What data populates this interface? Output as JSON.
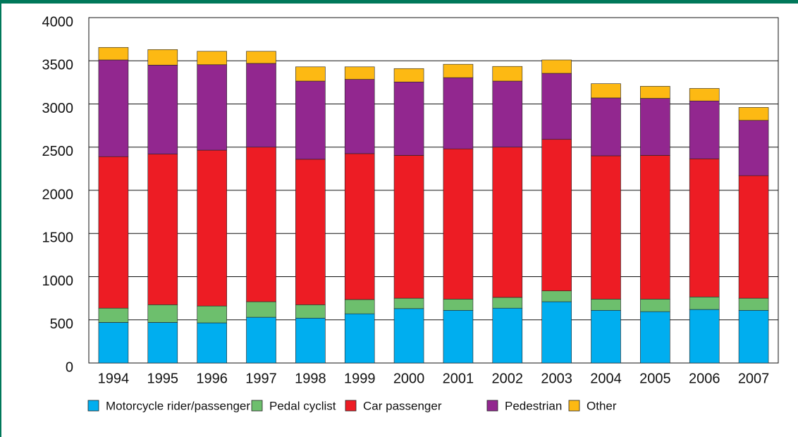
{
  "chart_data": {
    "type": "stacked-bar",
    "categories": [
      "1994",
      "1995",
      "1996",
      "1997",
      "1998",
      "1999",
      "2000",
      "2001",
      "2002",
      "2003",
      "2004",
      "2005",
      "2006",
      "2007"
    ],
    "series": [
      {
        "name": "Motorcycle rider/passenger",
        "color": "#00aeef",
        "values": [
          470,
          470,
          465,
          530,
          520,
          570,
          630,
          610,
          635,
          710,
          610,
          595,
          620,
          610
        ]
      },
      {
        "name": "Pedal cyclist",
        "color": "#6dbf6d",
        "values": [
          165,
          205,
          195,
          180,
          155,
          165,
          120,
          130,
          125,
          125,
          130,
          145,
          145,
          140
        ]
      },
      {
        "name": "Car passenger",
        "color": "#ed1c24",
        "values": [
          1755,
          1745,
          1805,
          1790,
          1685,
          1690,
          1655,
          1740,
          1740,
          1755,
          1660,
          1665,
          1600,
          1420
        ]
      },
      {
        "name": "Pedestrian",
        "color": "#92278f",
        "values": [
          1120,
          1030,
          990,
          970,
          905,
          860,
          850,
          825,
          765,
          765,
          670,
          660,
          670,
          640
        ]
      },
      {
        "name": "Other",
        "color": "#fdb913",
        "values": [
          145,
          180,
          155,
          140,
          165,
          145,
          155,
          155,
          170,
          155,
          165,
          140,
          145,
          150
        ]
      }
    ],
    "ylim": [
      0,
      4000
    ],
    "yticks": [
      0,
      500,
      1000,
      1500,
      2000,
      2500,
      3000,
      3500,
      4000
    ],
    "grid": true
  }
}
